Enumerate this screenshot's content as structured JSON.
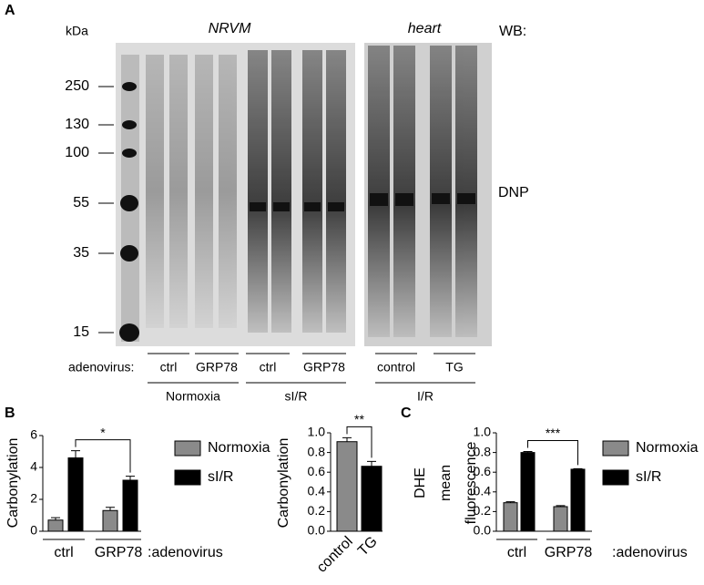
{
  "panel_a": {
    "letter": "A",
    "kda": "kDa",
    "nrvm": "NRVM",
    "heart": "heart",
    "wb": "WB:",
    "dnp": "DNP",
    "markers": [
      250,
      130,
      100,
      55,
      35,
      15
    ],
    "adenovirus": "adenovirus:",
    "lanes": [
      "ctrl",
      "GRP78",
      "ctrl",
      "GRP78",
      "control",
      "TG"
    ],
    "conditions": [
      "Normoxia",
      "sI/R",
      "I/R"
    ]
  },
  "panel_b": {
    "letter": "B"
  },
  "panel_c": {
    "letter": "C"
  },
  "chart_data": [
    {
      "type": "bar",
      "y_label": "Carbonylation",
      "categories": [
        "ctrl",
        "GRP78"
      ],
      "category_suffix": ":adenovirus",
      "series": [
        {
          "name": "Normoxia",
          "color": "#8a8a8a",
          "values": [
            0.7,
            1.3
          ],
          "errors": [
            0.15,
            0.2
          ]
        },
        {
          "name": "sI/R",
          "color": "#000000",
          "values": [
            4.6,
            3.2
          ],
          "errors": [
            0.45,
            0.25
          ]
        }
      ],
      "ylim": [
        0,
        6
      ],
      "yticks": [
        0,
        2,
        4,
        6
      ],
      "annotation": "*"
    },
    {
      "type": "bar",
      "y_label": "Carbonylation",
      "categories": [
        "control",
        "TG"
      ],
      "values": [
        0.91,
        0.66
      ],
      "errors": [
        0.04,
        0.05
      ],
      "colors": [
        "#8a8a8a",
        "#000000"
      ],
      "ylim": [
        0,
        1
      ],
      "yticks": [
        {
          "value": 0,
          "label": "0.0"
        },
        {
          "value": 0.2,
          "label": "0.2"
        },
        {
          "value": 0.4,
          "label": "0.4"
        },
        {
          "value": 0.6,
          "label": "0.6"
        },
        {
          "value": 0.8,
          "label": "0.8"
        },
        {
          "value": 1,
          "label": "1.0"
        }
      ],
      "annotation": "**"
    },
    {
      "type": "bar",
      "y_label": [
        "DHE",
        "mean",
        "fluorescence"
      ],
      "categories": [
        "ctrl",
        "GRP78"
      ],
      "category_suffix": ":adenovirus",
      "series": [
        {
          "name": "Normoxia",
          "color": "#8a8a8a",
          "values": [
            0.29,
            0.25
          ],
          "errors": [
            0.01,
            0.01
          ]
        },
        {
          "name": "sI/R",
          "color": "#000000",
          "values": [
            0.8,
            0.63
          ],
          "errors": [
            0.01,
            0.005
          ]
        }
      ],
      "ylim": [
        0,
        1
      ],
      "yticks": [
        {
          "value": 0,
          "label": "0.0"
        },
        {
          "value": 0.2,
          "label": "0.2"
        },
        {
          "value": 0.4,
          "label": "0.4"
        },
        {
          "value": 0.6,
          "label": "0.6"
        },
        {
          "value": 0.8,
          "label": "0.8"
        },
        {
          "value": 1,
          "label": "1.0"
        }
      ],
      "annotation": "***"
    }
  ]
}
